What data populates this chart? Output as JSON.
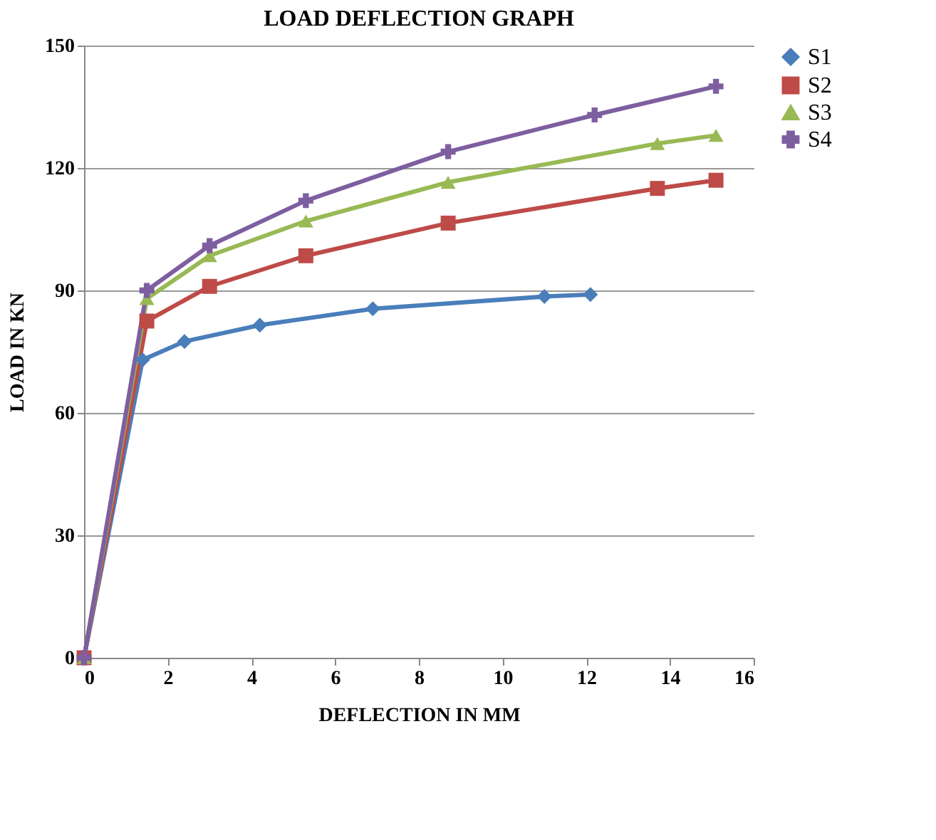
{
  "chart_data": {
    "type": "line",
    "title": "LOAD DEFLECTION GRAPH",
    "xlabel": "DEFLECTION IN MM",
    "ylabel": "LOAD IN KN",
    "xlim": [
      0,
      16
    ],
    "xticks": [
      0,
      2,
      4,
      6,
      8,
      10,
      12,
      14,
      16
    ],
    "ylim": [
      0,
      150
    ],
    "yticks": [
      0,
      30,
      60,
      90,
      120,
      150
    ],
    "grid": "y",
    "legend": "right",
    "series": [
      {
        "name": "S1",
        "color": "#4a7ebb",
        "marker": "diamond",
        "x": [
          0,
          1.4,
          2.4,
          4.2,
          6.9,
          11,
          12.1
        ],
        "values": [
          0,
          73,
          77.5,
          81.5,
          85.5,
          88.5,
          89
        ]
      },
      {
        "name": "S2",
        "color": "#be4b48",
        "marker": "square",
        "x": [
          0,
          1.5,
          3,
          5.3,
          8.7,
          13.7,
          15.1
        ],
        "values": [
          0,
          82.5,
          91,
          98.5,
          106.5,
          115,
          117
        ]
      },
      {
        "name": "S3",
        "color": "#98b954",
        "marker": "triangle",
        "x": [
          0,
          1.5,
          3,
          5.3,
          8.7,
          13.7,
          15.1
        ],
        "values": [
          0,
          88,
          98.5,
          107,
          116.5,
          126,
          128
        ]
      },
      {
        "name": "S4",
        "color": "#7d5fa0",
        "marker": "cross",
        "x": [
          0,
          1.5,
          3,
          5.3,
          8.7,
          12.2,
          15.1
        ],
        "values": [
          0,
          90,
          101,
          112,
          124,
          133,
          140
        ]
      }
    ]
  }
}
